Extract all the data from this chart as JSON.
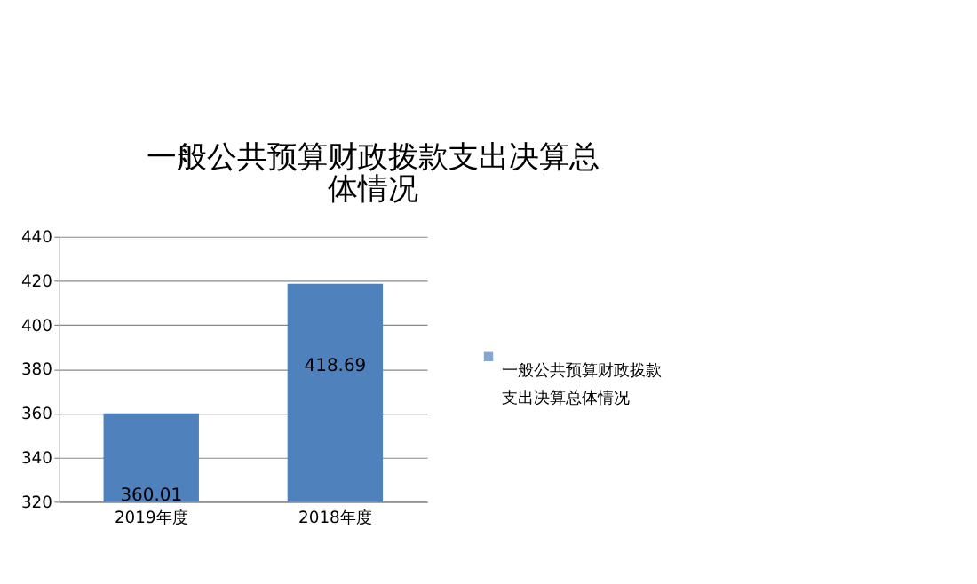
{
  "chart_data": {
    "type": "bar",
    "title": "一般公共预算财政拨款支出决算总体情况",
    "categories": [
      "2019年度",
      "2018年度"
    ],
    "series": [
      {
        "name": "一般公共预算财政拨款支出决算总体情况",
        "color": "#4f81bd",
        "values": [
          360.01,
          418.69
        ]
      }
    ],
    "ylim": [
      320,
      440
    ],
    "yticks": [
      320,
      340,
      360,
      380,
      400,
      420,
      440
    ],
    "grid": "y",
    "legend": "right",
    "data_labels": true
  }
}
